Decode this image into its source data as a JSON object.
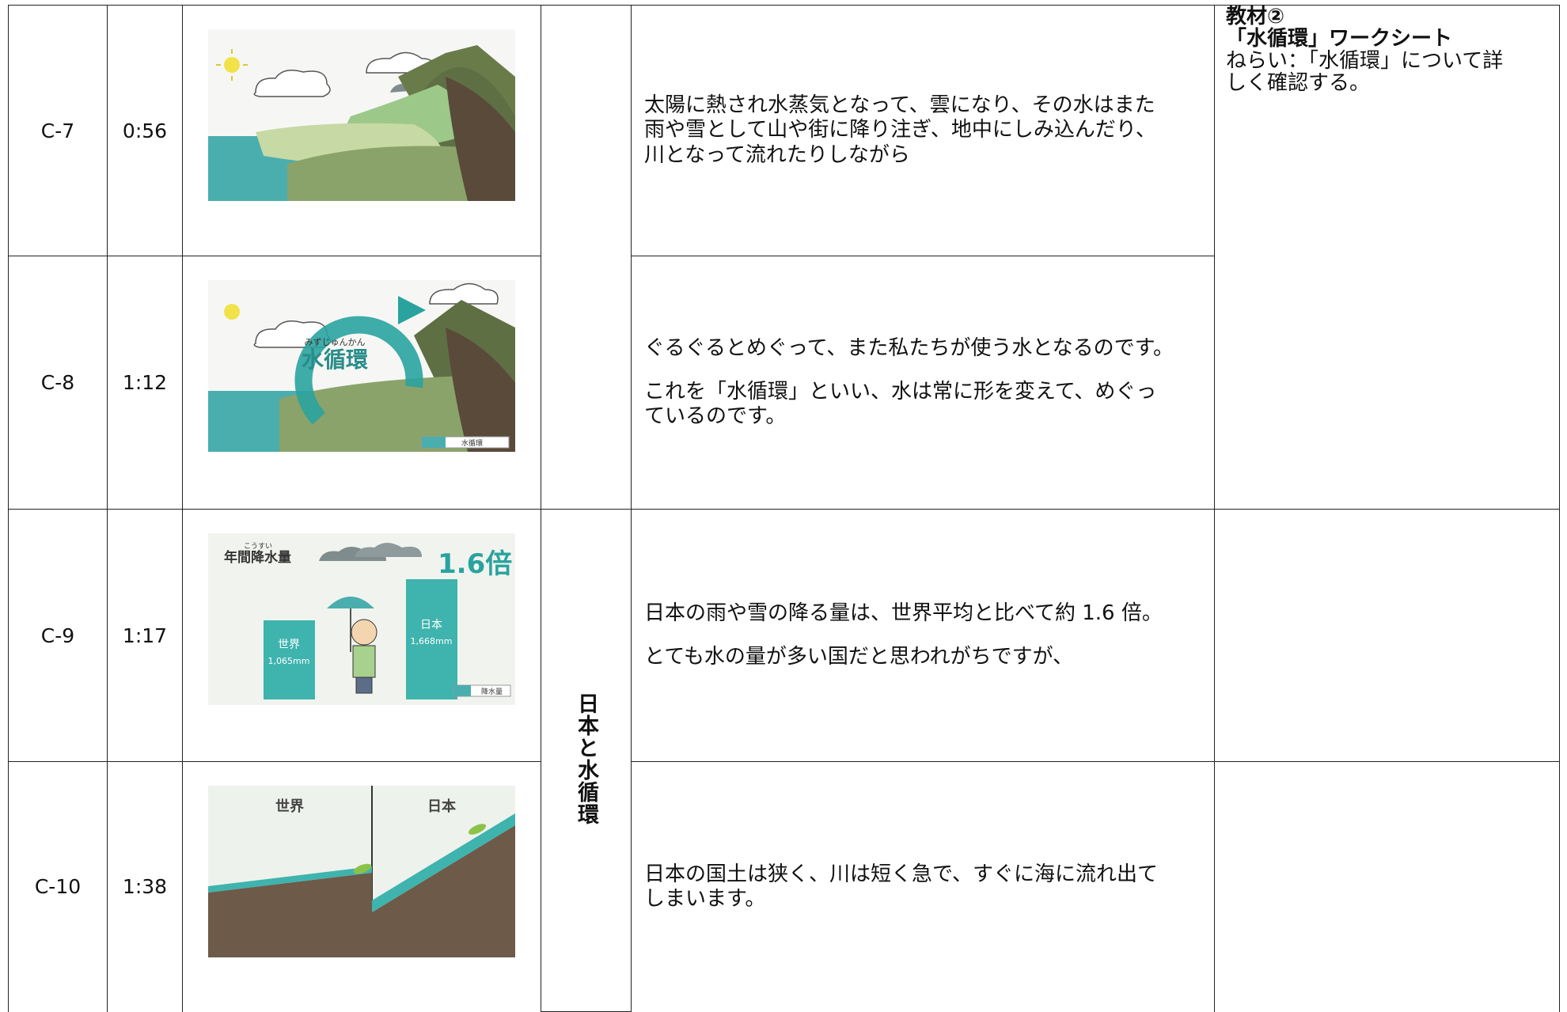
{
  "table": {
    "rows": [
      {
        "id": "C-7",
        "time": "0:56",
        "narration": [
          "太陽に熱され水蒸気となって、雲になり、その水はまた\n雨や雪として山や街に降り注ぎ、地中にしみ込んだり、\n川となって流れたりしながら"
        ],
        "image": {}
      },
      {
        "id": "C-8",
        "time": "1:12",
        "narration": [
          "ぐるぐるとめぐって、また私たちが使う水となるのです。",
          "これを「水循環」といい、水は常に形を変えて、めぐっ\nているのです。"
        ],
        "image": {
          "ruby": "みずじゅんかん",
          "title": "水循環",
          "search": "水循環"
        }
      },
      {
        "id": "C-9",
        "time": "1:17",
        "narration": [
          "日本の雨や雪の降る量は、世界平均と比べて約 1.6 倍。",
          "とても水の量が多い国だと思われがちですが、"
        ],
        "image": {
          "title": "年間降水量",
          "ruby": "こうすい",
          "ratio": "1.6倍",
          "world": "世界",
          "world_amount": "1,065mm",
          "japan": "日本",
          "japan_amount": "1,668mm",
          "search": "降水量"
        }
      },
      {
        "id": "C-10",
        "time": "1:38",
        "narration": [
          "日本の国土は狭く、川は短く急で、すぐに海に流れ出て\nしまいます。"
        ],
        "image": {
          "world": "世界",
          "japan": "日本"
        }
      }
    ],
    "theme": "日本と水循環",
    "material": {
      "title": "教材②",
      "subtitle": "「水循環」ワークシート",
      "aim": "ねらい：「水循環」について詳\nしく確認する。"
    }
  }
}
